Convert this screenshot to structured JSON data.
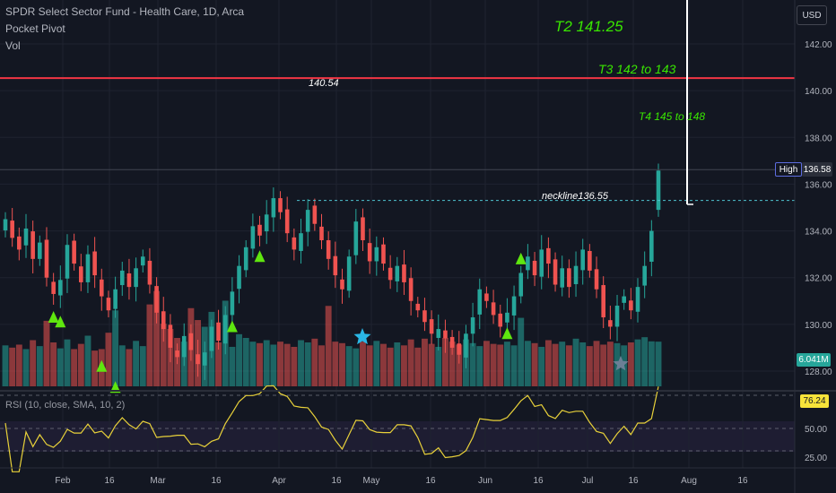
{
  "header": {
    "title": "SPDR Select Sector Fund - Health Care, 1D, Arca",
    "indicator1": "Pocket Pivot",
    "indicator2": "Vol",
    "currency": "USD"
  },
  "annotations": {
    "t2": "T2 141.25",
    "t3": "T3 142 to 143",
    "t4": "T4 145 to 148",
    "resistance": "140.54",
    "neckline": "neckline136.55"
  },
  "badges": {
    "high_label": "High",
    "high_value": "136.58",
    "volume": "6.041M",
    "rsi": "76.24"
  },
  "rsi_legend": "RSI (10, close, SMA, 10, 2)",
  "colors": {
    "background": "#131722",
    "up": "#26a69a",
    "down": "#ef5350",
    "resistance": "#f23645",
    "target_text": "#39e600",
    "rsi_line": "#e8d13a",
    "signal": "#5fe60f",
    "star_blue": "#2ab7e6",
    "star_gray": "#6b7f95"
  },
  "chart_data": {
    "type": "candlestick",
    "y_ticks": [
      "142.00",
      "140.00",
      "138.00",
      "136.00",
      "134.00",
      "132.00",
      "130.00",
      "128.00"
    ],
    "ylim": [
      127.5,
      143.5
    ],
    "x_ticks": [
      "Feb",
      "16",
      "Mar",
      "16",
      "Apr",
      "16",
      "May",
      "16",
      "Jun",
      "16",
      "Jul",
      "16",
      "Aug",
      "16"
    ],
    "resistance_level": 140.54,
    "neckline_level": 136.55,
    "high": 136.58,
    "closes": [
      134.5,
      133.7,
      133.2,
      134.1,
      132.8,
      133.5,
      132.0,
      131.3,
      131.9,
      133.4,
      132.6,
      131.8,
      133.0,
      132.1,
      131.2,
      130.6,
      131.5,
      132.3,
      131.6,
      132.4,
      132.9,
      131.7,
      130.5,
      129.8,
      129.0,
      128.6,
      129.5,
      128.9,
      128.3,
      128.8,
      129.9,
      129.3,
      130.4,
      131.4,
      132.5,
      133.3,
      134.2,
      133.8,
      134.7,
      135.4,
      134.8,
      133.9,
      133.2,
      133.9,
      134.9,
      134.3,
      133.6,
      132.8,
      132.1,
      131.5,
      132.9,
      134.4,
      133.6,
      132.7,
      133.3,
      132.6,
      131.9,
      132.5,
      131.8,
      131.0,
      130.6,
      130.1,
      129.6,
      129.8,
      129.4,
      129.0,
      128.7,
      129.6,
      130.3,
      131.5,
      131.0,
      130.4,
      129.9,
      130.5,
      131.2,
      132.2,
      132.9,
      132.1,
      133.2,
      132.6,
      131.7,
      132.4,
      131.6,
      132.5,
      133.2,
      132.3,
      131.5,
      130.3,
      129.9,
      130.8,
      131.2,
      130.6,
      131.6,
      132.5,
      134.0,
      136.58
    ],
    "volume": {
      "last": "6.041M",
      "bars": [
        5.5,
        5.2,
        5.6,
        5.0,
        6.2,
        5.4,
        8.8,
        5.9,
        5.1,
        6.3,
        5.0,
        5.7,
        6.8,
        4.8,
        5.0,
        7.2,
        10.2,
        5.5,
        5.0,
        6.1,
        5.4,
        11.0,
        12.8,
        8.4,
        7.7,
        6.5,
        6.0,
        10.5,
        8.9,
        8.0,
        10.0,
        5.9,
        11.5,
        5.3,
        7.0,
        6.5,
        6.0,
        5.8,
        6.2,
        5.6,
        6.0,
        5.7,
        5.3,
        6.2,
        5.9,
        6.4,
        5.5,
        10.8,
        6.0,
        5.8,
        5.4,
        5.1,
        6.0,
        5.5,
        6.1,
        5.7,
        5.2,
        5.9,
        5.5,
        6.3,
        5.2,
        6.4,
        5.7,
        5.3,
        6.5,
        6.0,
        5.6,
        6.3,
        5.8,
        5.4,
        6.1,
        5.7,
        5.6,
        6.0,
        5.5,
        9.2,
        6.1,
        5.8,
        5.3,
        6.2,
        5.7,
        6.0,
        5.5,
        6.4,
        5.9,
        5.4,
        6.1,
        5.6,
        6.0,
        5.8,
        5.5,
        5.9,
        6.3,
        6.6,
        6.041,
        6.0
      ]
    },
    "rsi": {
      "params": "RSI (10, close, SMA, 10, 2)",
      "current": 76.24,
      "levels": [
        70,
        50,
        30
      ],
      "tick_labels": [
        "50.00",
        "25.00"
      ],
      "ylim": [
        15,
        85
      ]
    }
  }
}
